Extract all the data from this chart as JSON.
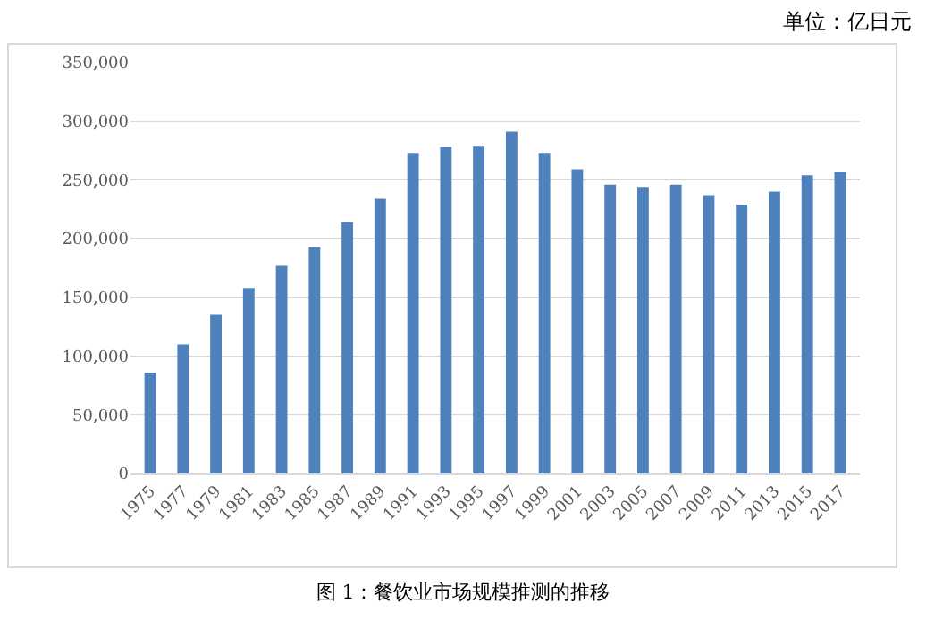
{
  "chart_data": {
    "type": "bar",
    "categories": [
      "1975",
      "1977",
      "1979",
      "1981",
      "1983",
      "1985",
      "1987",
      "1989",
      "1991",
      "1993",
      "1995",
      "1997",
      "1999",
      "2001",
      "2003",
      "2005",
      "2007",
      "2009",
      "2011",
      "2013",
      "2015",
      "2017"
    ],
    "values": [
      86000,
      110000,
      135000,
      158000,
      177000,
      193000,
      214000,
      234000,
      273000,
      278000,
      279000,
      291000,
      273000,
      259000,
      246000,
      244000,
      246000,
      237000,
      229000,
      240000,
      254000,
      257000
    ],
    "color": "#4f81bd",
    "ylim": [
      0,
      350000
    ],
    "yticks": [
      {
        "value": 0,
        "label": "0"
      },
      {
        "value": 50000,
        "label": "50,000"
      },
      {
        "value": 100000,
        "label": "100,000"
      },
      {
        "value": 150000,
        "label": "150,000"
      },
      {
        "value": 200000,
        "label": "200,000"
      },
      {
        "value": 250000,
        "label": "250,000"
      },
      {
        "value": 300000,
        "label": "300,000"
      },
      {
        "value": 350000,
        "label": "350,000"
      }
    ],
    "grid": "y",
    "legend": false,
    "annotations": [
      "单位：亿日元",
      "图 1：餐饮业市场规模推测的推移"
    ]
  }
}
